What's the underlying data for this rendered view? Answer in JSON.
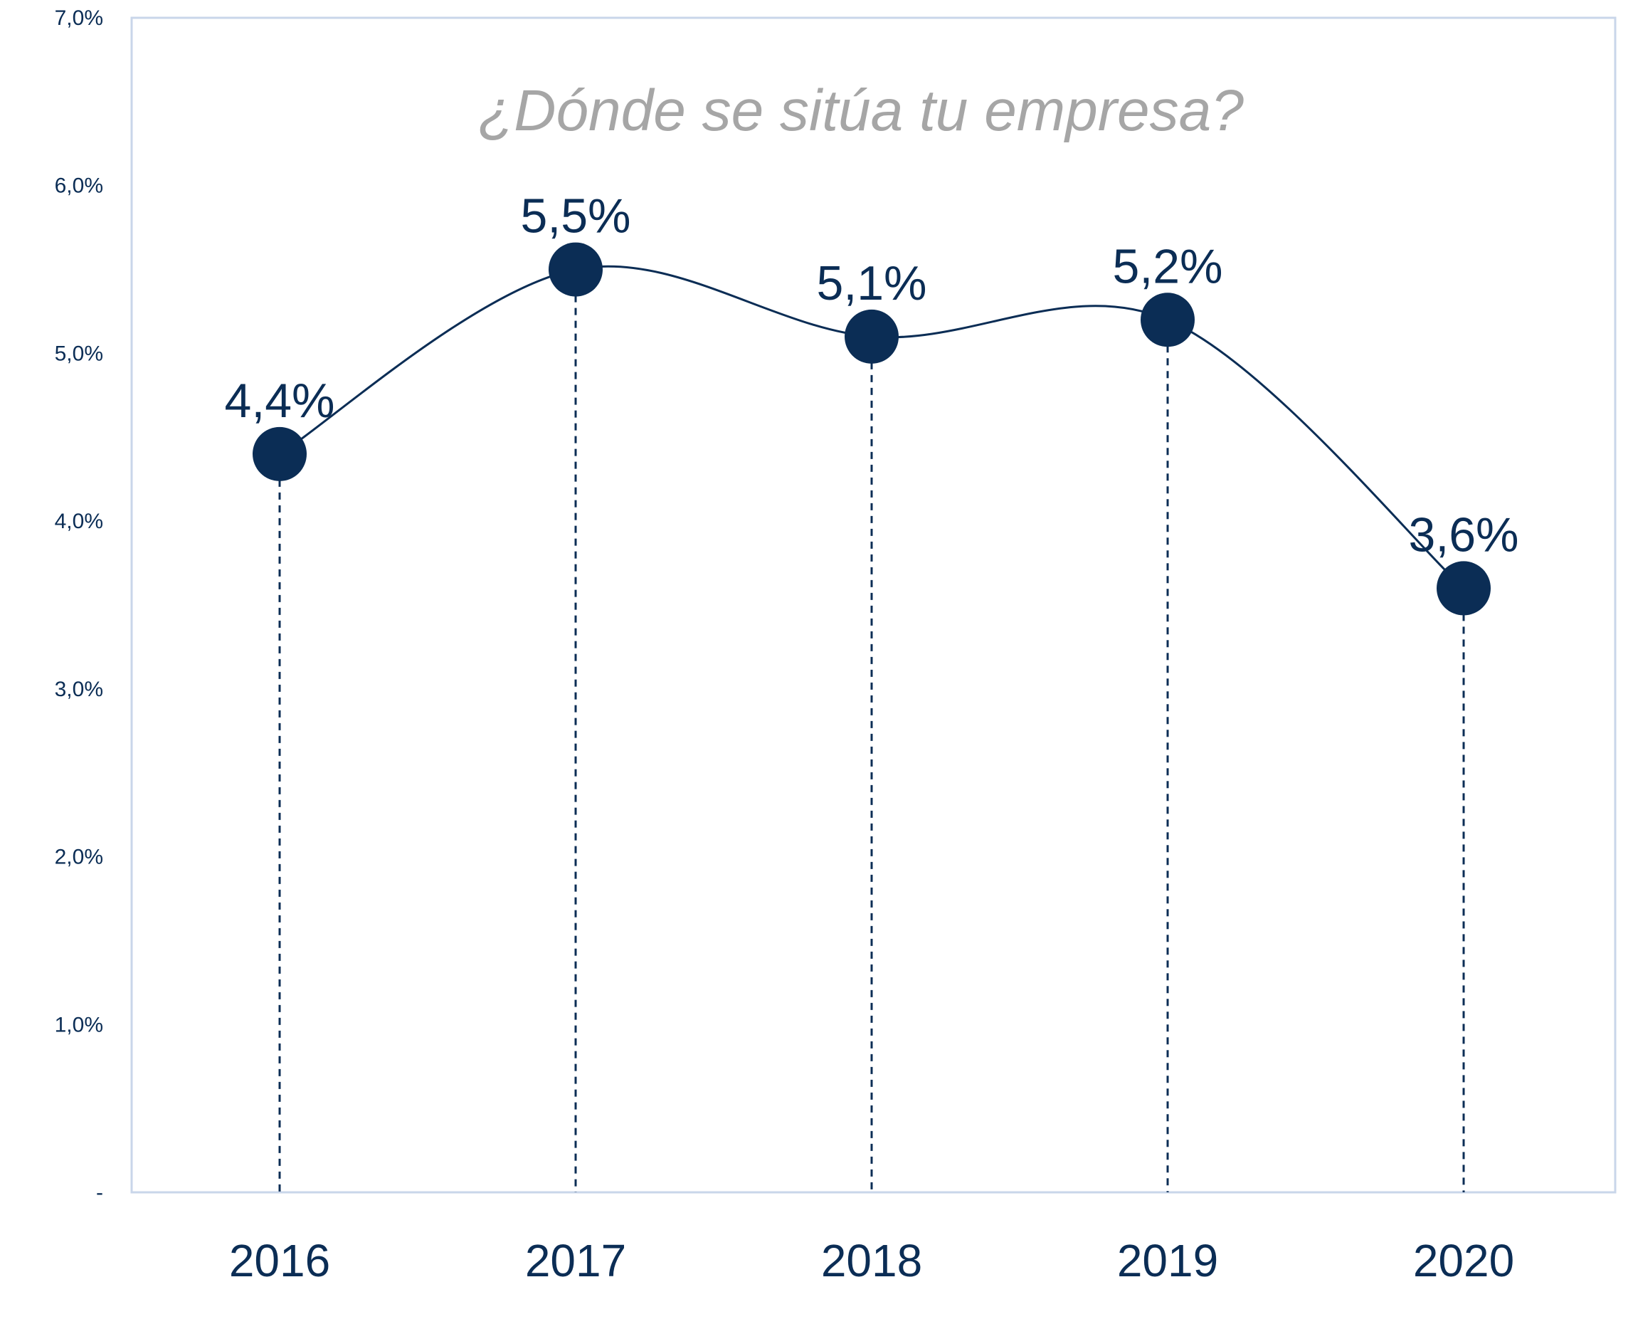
{
  "chart_data": {
    "type": "line",
    "title": "¿Dónde se sitúa tu empresa?",
    "categories": [
      "2016",
      "2017",
      "2018",
      "2019",
      "2020"
    ],
    "series": [
      {
        "values": [
          4.4,
          5.5,
          5.1,
          5.2,
          3.6
        ],
        "data_labels": [
          "4,4%",
          "5,5%",
          "5,1%",
          "5,2%",
          "3,6%"
        ]
      }
    ],
    "ylim": [
      0,
      7
    ],
    "yticks": [
      0,
      1,
      2,
      3,
      4,
      5,
      6,
      7
    ],
    "ytick_labels": [
      "-",
      "1,0%",
      "2,0%",
      "3,0%",
      "4,0%",
      "5,0%",
      "6,0%",
      "7,0%"
    ],
    "smooth_line": true,
    "drop_lines": "dashed",
    "grid": false,
    "legend": "none",
    "colors": {
      "series": "#0b2d55",
      "title": "#a6a6a6",
      "frame": "#c9d6ea"
    }
  }
}
